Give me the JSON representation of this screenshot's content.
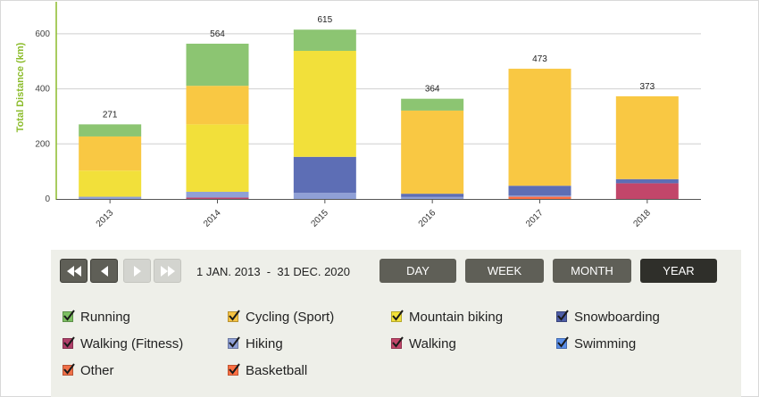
{
  "chart_data": {
    "type": "bar",
    "stacked": true,
    "categories": [
      "2013",
      "2014",
      "2015",
      "2016",
      "2017",
      "2018"
    ],
    "totals": [
      271,
      564,
      615,
      364,
      473,
      373
    ],
    "ylabel": "Total Distance (km)",
    "ylim": [
      0,
      700
    ],
    "yticks": [
      0,
      200,
      400,
      600
    ],
    "grid": true,
    "series": [
      {
        "name": "Basketball",
        "color": "#ff7043",
        "values": [
          0,
          0,
          0,
          0,
          8,
          0
        ]
      },
      {
        "name": "Walking",
        "color": "#c2466a",
        "values": [
          0,
          5,
          0,
          0,
          0,
          57
        ]
      },
      {
        "name": "Walking (Fitness)",
        "color": "#b0406a",
        "values": [
          0,
          0,
          0,
          0,
          0,
          0
        ]
      },
      {
        "name": "Hiking",
        "color": "#8fa0d6",
        "values": [
          8,
          21,
          22,
          7,
          4,
          0
        ]
      },
      {
        "name": "Snowboarding",
        "color": "#5d6eb5",
        "values": [
          0,
          0,
          131,
          12,
          36,
          15
        ]
      },
      {
        "name": "Mountain biking",
        "color": "#f2e03a",
        "values": [
          95,
          245,
          385,
          0,
          0,
          0
        ]
      },
      {
        "name": "Cycling (Sport)",
        "color": "#f9c843",
        "values": [
          124,
          140,
          0,
          302,
          425,
          301
        ]
      },
      {
        "name": "Running",
        "color": "#8cc572",
        "values": [
          44,
          153,
          77,
          43,
          0,
          0
        ]
      }
    ]
  },
  "nav": {
    "first_icon": "double-left-arrow-icon",
    "prev_icon": "left-arrow-icon",
    "next_icon": "right-arrow-icon",
    "last_icon": "double-right-arrow-icon"
  },
  "date_range": "1 JAN. 2013  -  31 DEC. 2020",
  "periods": [
    {
      "label": "DAY",
      "active": false
    },
    {
      "label": "WEEK",
      "active": false
    },
    {
      "label": "MONTH",
      "active": false
    },
    {
      "label": "YEAR",
      "active": true
    }
  ],
  "legend": [
    {
      "label": "Running",
      "color": "#7cbf62",
      "checked": true
    },
    {
      "label": "Cycling (Sport)",
      "color": "#f6c343",
      "checked": true
    },
    {
      "label": "Mountain biking",
      "color": "#f2e03a",
      "checked": true
    },
    {
      "label": "Snowboarding",
      "color": "#4e5da6",
      "checked": true
    },
    {
      "label": "Walking (Fitness)",
      "color": "#b0406a",
      "checked": true
    },
    {
      "label": "Hiking",
      "color": "#8fa0d6",
      "checked": true
    },
    {
      "label": "Walking",
      "color": "#c2466a",
      "checked": true
    },
    {
      "label": "Swimming",
      "color": "#5a8ee8",
      "checked": true
    },
    {
      "label": "Other",
      "color": "#f07048",
      "checked": true
    },
    {
      "label": "Basketball",
      "color": "#ff7043",
      "checked": true
    }
  ]
}
